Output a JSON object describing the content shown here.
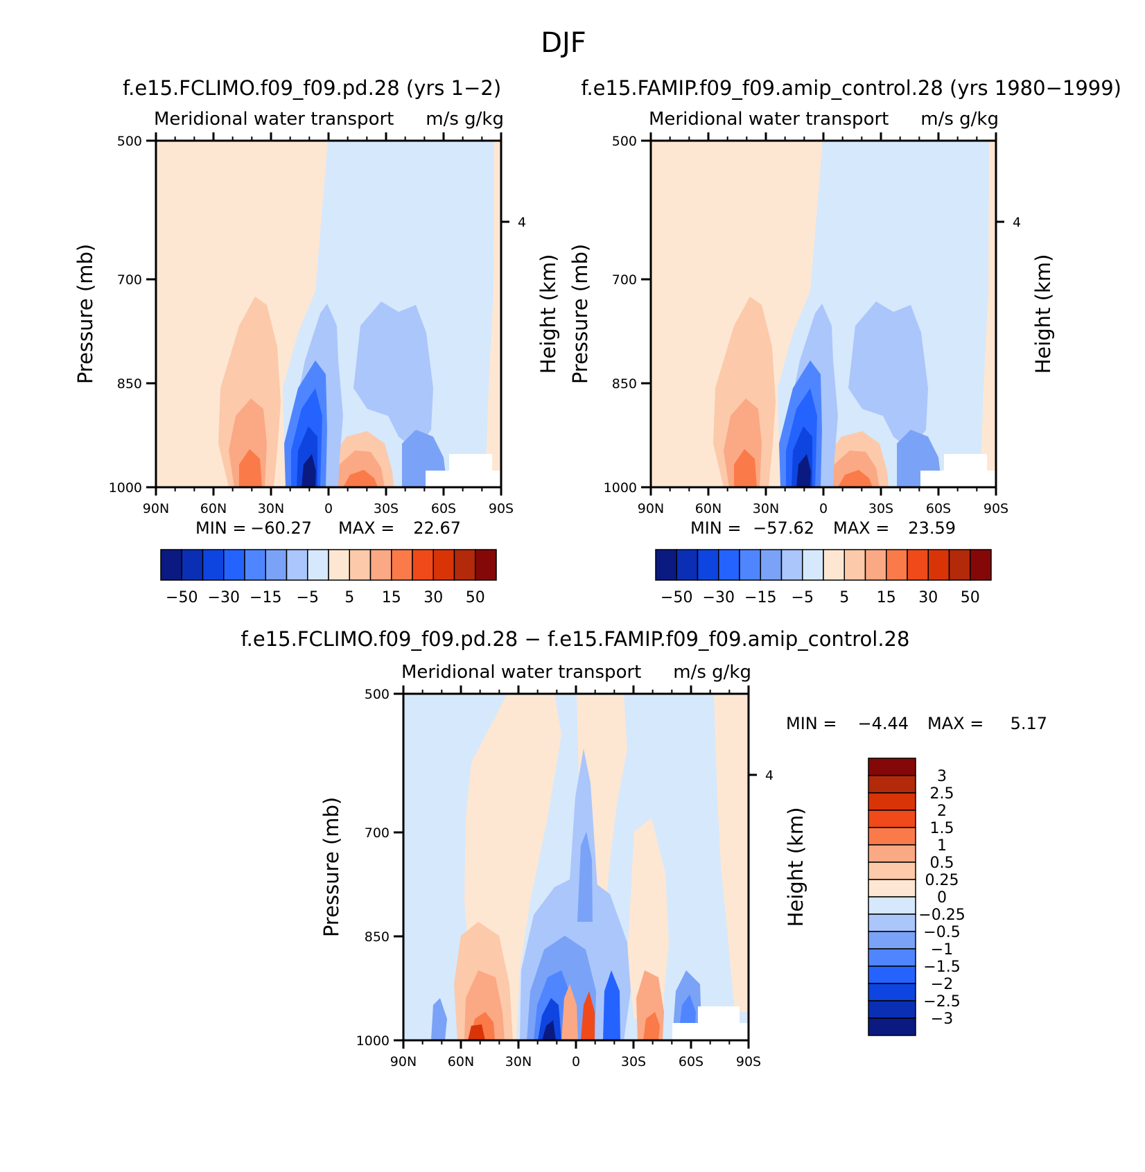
{
  "figure": {
    "title": "DJF"
  },
  "colors": {
    "top_levels": [
      "#0a1a80",
      "#0a2fb5",
      "#0e45e0",
      "#2563ff",
      "#4f86ff",
      "#7aa2f7",
      "#aac6fb",
      "#d6e8fb",
      "#fde7d3",
      "#fcc9aa",
      "#fba884",
      "#fa7a4a",
      "#f04a1a",
      "#d93408",
      "#b22a0a",
      "#850808"
    ],
    "diff_levels": [
      "#0a1a80",
      "#0a2fb5",
      "#0e45e0",
      "#2563ff",
      "#4f86ff",
      "#7aa2f7",
      "#aac6fb",
      "#d6e8fb",
      "#fde7d3",
      "#fcc9aa",
      "#fba884",
      "#fa7a4a",
      "#f04a1a",
      "#d93408",
      "#b22a0a",
      "#850808"
    ],
    "missing": "#ffffff"
  },
  "panel_left": {
    "case_title": "f.e15.FCLIMO.f09_f09.pd.28 (yrs 1−2)",
    "var_title": "Meridional water transport",
    "units": "m/s g/kg",
    "ylabel": "Pressure (mb)",
    "ylabel_right": "Height (km)",
    "min_label": "MIN = ",
    "min_value": "−60.27",
    "max_label": "MAX = ",
    "max_value": "22.67",
    "y_ticks": [
      "500",
      "700",
      "850",
      "1000"
    ],
    "x_ticks": [
      "90N",
      "60N",
      "30N",
      "0",
      "30S",
      "60S",
      "90S"
    ],
    "right_tick": "4",
    "cbar_labels": [
      "−50",
      "−30",
      "−15",
      "−5",
      "5",
      "15",
      "30",
      "50"
    ]
  },
  "panel_right": {
    "case_title": "f.e15.FAMIP.f09_f09.amip_control.28 (yrs 1980−1999)",
    "var_title": "Meridional water transport",
    "units": "m/s g/kg",
    "ylabel": "Pressure (mb)",
    "ylabel_right": "Height (km)",
    "min_label": "MIN = ",
    "min_value": "−57.62",
    "max_label": "MAX = ",
    "max_value": "23.59",
    "y_ticks": [
      "500",
      "700",
      "850",
      "1000"
    ],
    "x_ticks": [
      "90N",
      "60N",
      "30N",
      "0",
      "30S",
      "60S",
      "90S"
    ],
    "right_tick": "4",
    "cbar_labels": [
      "−50",
      "−30",
      "−15",
      "−5",
      "5",
      "15",
      "30",
      "50"
    ]
  },
  "panel_diff": {
    "case_title": "f.e15.FCLIMO.f09_f09.pd.28 − f.e15.FAMIP.f09_f09.amip_control.28",
    "var_title": "Meridional water transport",
    "units": "m/s g/kg",
    "ylabel": "Pressure (mb)",
    "ylabel_right": "Height (km)",
    "min_label": "MIN = ",
    "min_value": "−4.44",
    "max_label": "MAX = ",
    "max_value": "5.17",
    "y_ticks": [
      "500",
      "700",
      "850",
      "1000"
    ],
    "x_ticks": [
      "90N",
      "60N",
      "30N",
      "0",
      "30S",
      "60S",
      "90S"
    ],
    "right_tick": "4",
    "cbar_labels": [
      "3",
      "2.5",
      "2",
      "1.5",
      "1",
      "0.5",
      "0.25",
      "0",
      "−0.25",
      "−0.5",
      "−1",
      "−1.5",
      "−2",
      "−2.5",
      "−3"
    ]
  },
  "chart_data": [
    {
      "type": "heatmap",
      "title": "Meridional water transport",
      "units": "m/s g/kg",
      "ylabel": "Pressure (mb)",
      "xlim": [
        "90N",
        "90S"
      ],
      "ylim": [
        500,
        1000
      ],
      "contour_levels": [
        -50,
        -40,
        -30,
        -20,
        -15,
        -10,
        -5,
        0,
        5,
        10,
        15,
        20,
        30,
        40,
        50
      ],
      "min": -60.27,
      "max": 22.67,
      "features": [
        {
          "lat": "10N",
          "p": 990,
          "value": -55
        },
        {
          "lat": "40N",
          "p": 980,
          "value": 20
        },
        {
          "lat": "20S",
          "p": 990,
          "value": 18
        },
        {
          "lat": "55S",
          "p": 990,
          "value": -15
        }
      ]
    },
    {
      "type": "heatmap",
      "title": "Meridional water transport",
      "units": "m/s g/kg",
      "ylabel": "Pressure (mb)",
      "xlim": [
        "90N",
        "90S"
      ],
      "ylim": [
        500,
        1000
      ],
      "contour_levels": [
        -50,
        -40,
        -30,
        -20,
        -15,
        -10,
        -5,
        0,
        5,
        10,
        15,
        20,
        30,
        40,
        50
      ],
      "min": -57.62,
      "max": 23.59,
      "features": [
        {
          "lat": "10N",
          "p": 990,
          "value": -52
        },
        {
          "lat": "40N",
          "p": 980,
          "value": 21
        },
        {
          "lat": "20S",
          "p": 990,
          "value": 19
        },
        {
          "lat": "55S",
          "p": 990,
          "value": -15
        }
      ]
    },
    {
      "type": "heatmap",
      "title": "Meridional water transport",
      "units": "m/s g/kg",
      "ylabel": "Pressure (mb)",
      "xlim": [
        "90N",
        "90S"
      ],
      "ylim": [
        500,
        1000
      ],
      "contour_levels": [
        -3,
        -2.5,
        -2,
        -1.5,
        -1,
        -0.5,
        -0.25,
        0,
        0.25,
        0.5,
        1,
        1.5,
        2,
        2.5,
        3
      ],
      "min": -4.44,
      "max": 5.17
    }
  ]
}
